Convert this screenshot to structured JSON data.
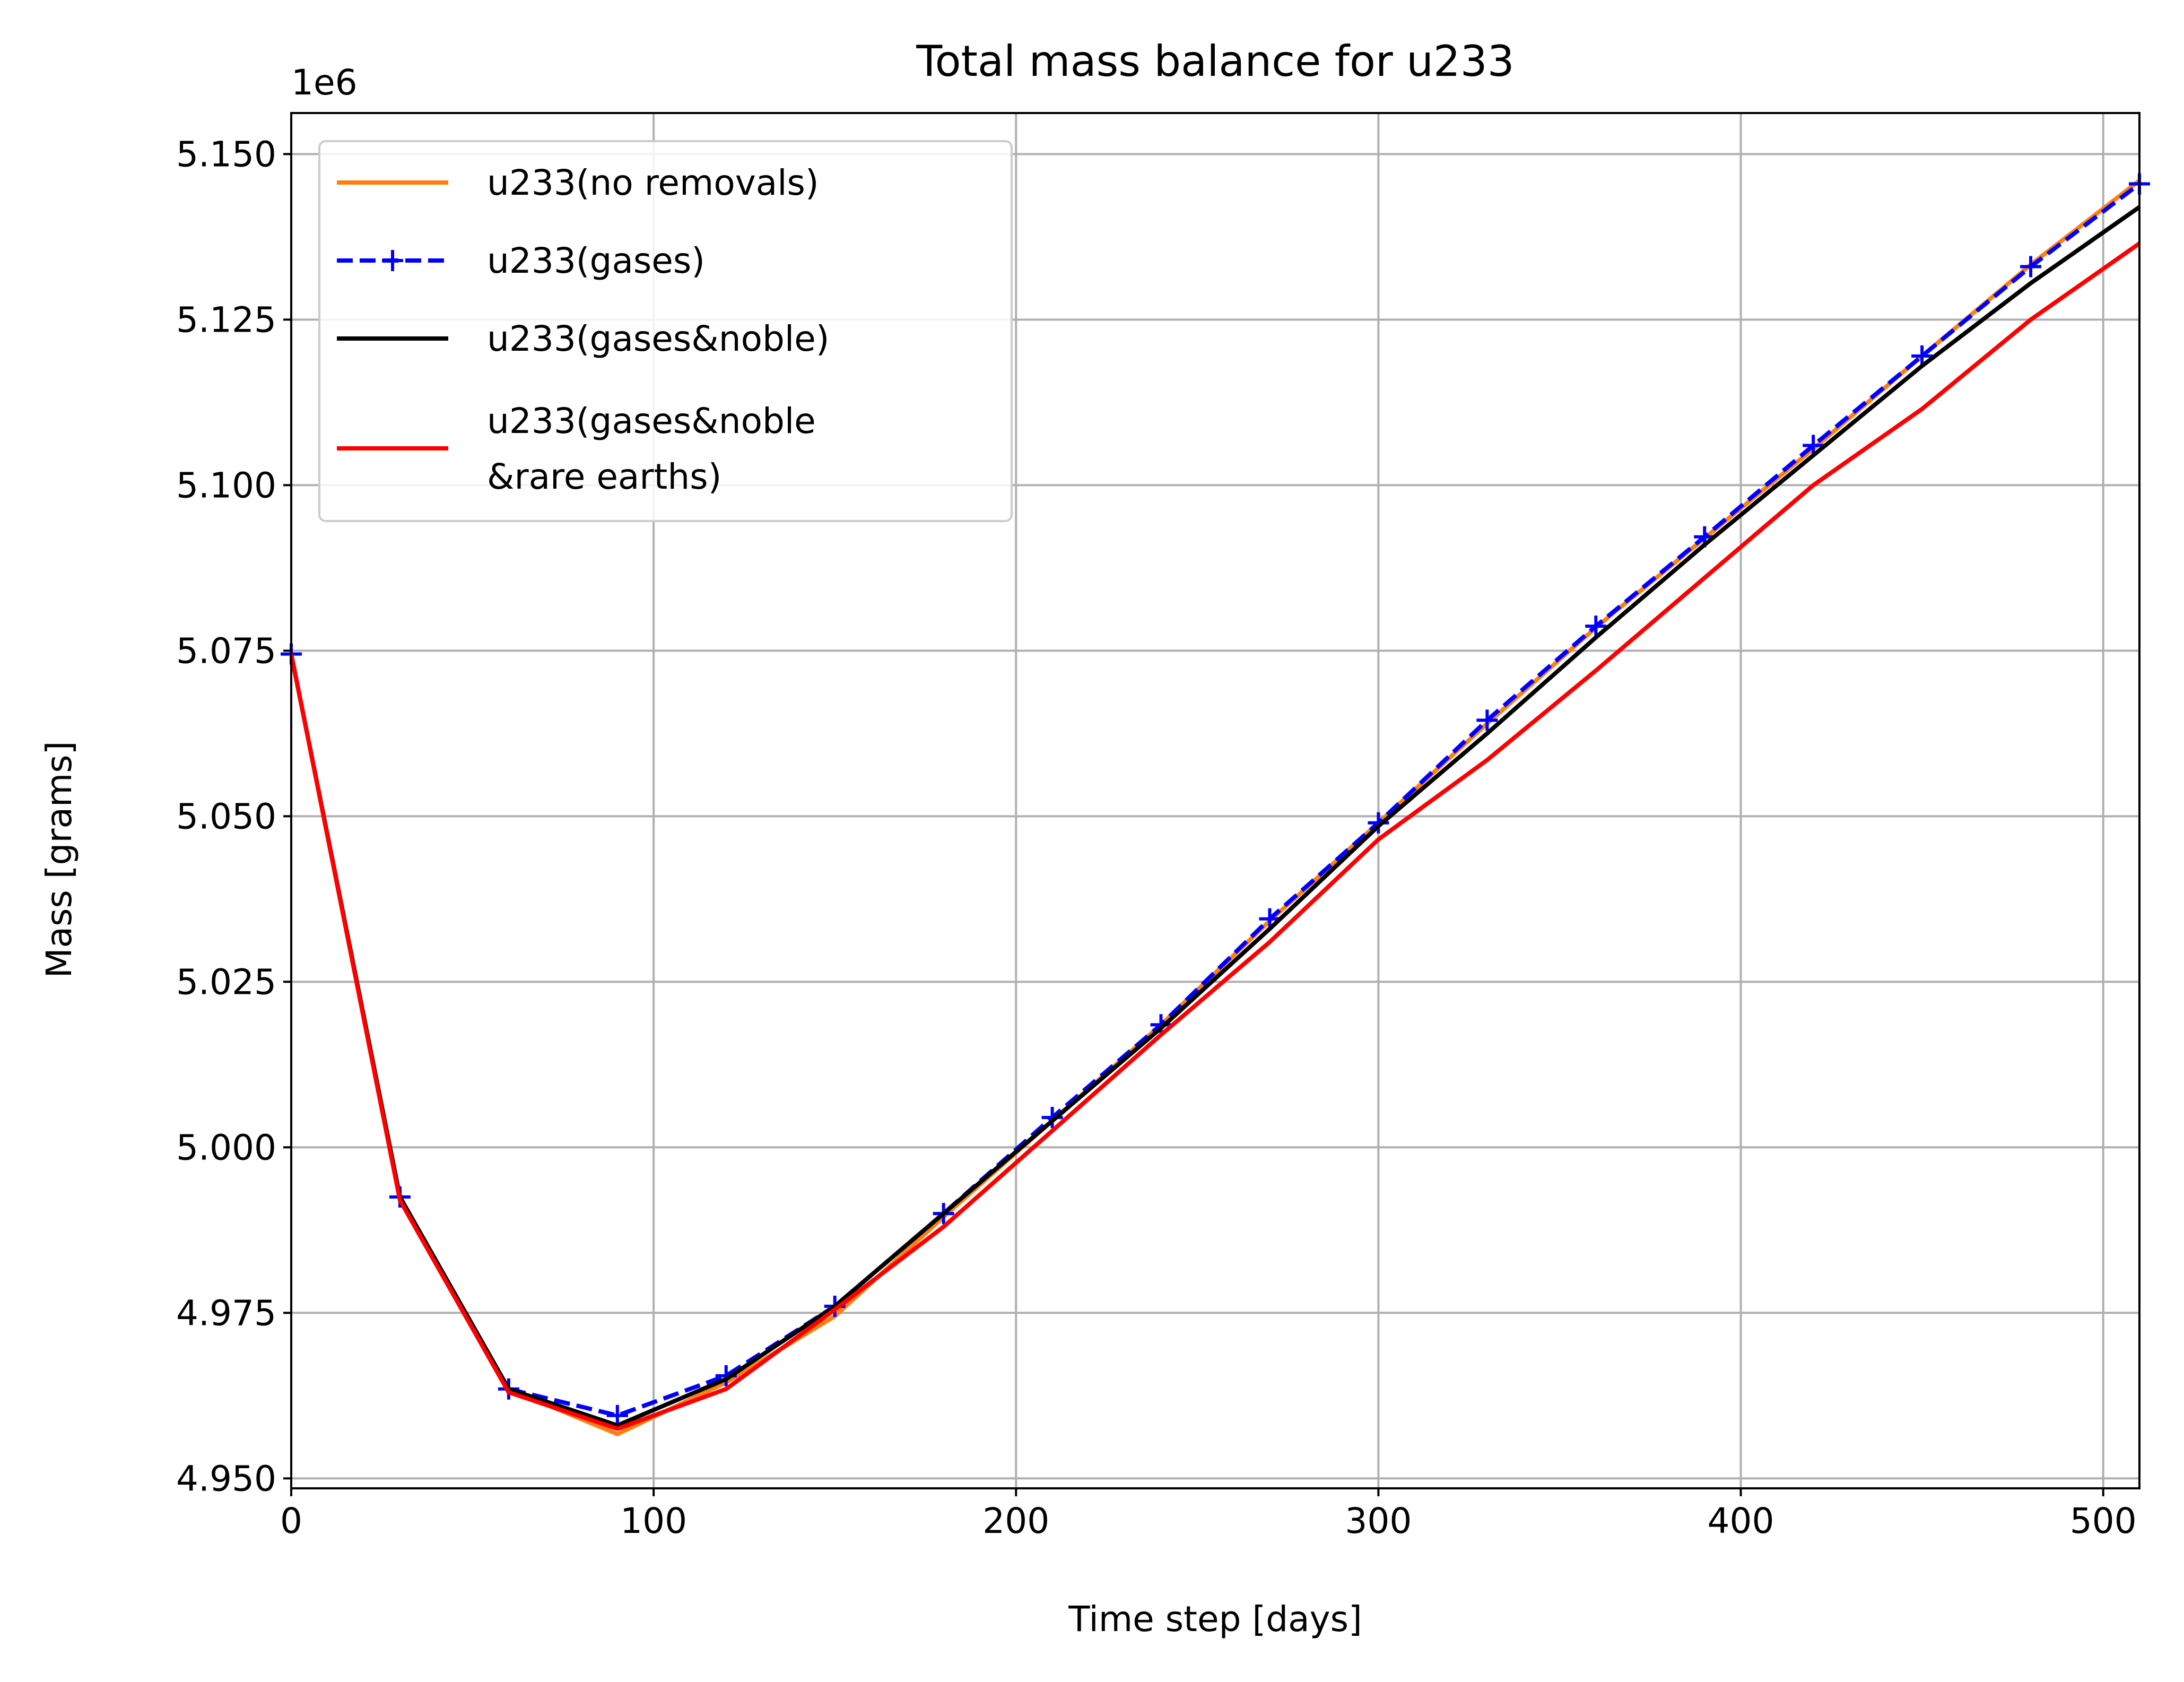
{
  "chart_data": {
    "type": "line",
    "title": "Total mass balance for u233",
    "xlabel": "Time step [days]",
    "ylabel": "Mass [grams]",
    "y_offset_label": "1e6",
    "xlim": [
      0,
      510
    ],
    "ylim": [
      4.9485,
      5.1562
    ],
    "x_ticks": [
      0,
      100,
      200,
      300,
      400,
      500
    ],
    "x_tick_labels": [
      "0",
      "100",
      "200",
      "300",
      "400",
      "500"
    ],
    "y_ticks": [
      4.95,
      4.975,
      5.0,
      5.025,
      5.05,
      5.075,
      5.1,
      5.125,
      5.15
    ],
    "y_tick_labels": [
      "4.950",
      "4.975",
      "5.000",
      "5.025",
      "5.050",
      "5.075",
      "5.100",
      "5.125",
      "5.150"
    ],
    "grid": true,
    "legend_position": "upper-left",
    "x": [
      0,
      30,
      60,
      90,
      120,
      150,
      180,
      210,
      240,
      270,
      300,
      330,
      360,
      390,
      420,
      450,
      480,
      510
    ],
    "series": [
      {
        "name": "u233(no removals)",
        "color": "#ff7f0e",
        "dash": "solid",
        "marker": "none",
        "values": [
          5.0745,
          4.9925,
          4.9635,
          4.9567,
          4.9645,
          4.9745,
          4.9895,
          5.004,
          5.0185,
          5.0342,
          5.049,
          5.064,
          5.0785,
          5.092,
          5.1055,
          5.1195,
          5.1333,
          5.146
        ]
      },
      {
        "name": "u233(gases)",
        "color": "#0000ff",
        "dash": "dashed",
        "marker": "plus",
        "values": [
          5.0745,
          4.9925,
          4.9635,
          4.9595,
          4.9655,
          4.976,
          4.99,
          5.0045,
          5.0185,
          5.0345,
          5.049,
          5.0645,
          5.0787,
          5.0922,
          5.106,
          5.1195,
          5.133,
          5.1455
        ]
      },
      {
        "name": "u233(gases&noble)",
        "color": "#000000",
        "dash": "solid",
        "marker": "none",
        "values": [
          5.0745,
          4.9925,
          4.9635,
          4.958,
          4.965,
          4.976,
          4.99,
          5.004,
          5.018,
          5.033,
          5.0485,
          5.0625,
          5.077,
          5.091,
          5.1045,
          5.118,
          5.1305,
          5.142
        ]
      },
      {
        "name": "u233(gases&noble\n&rare earths)",
        "color": "#ff0000",
        "dash": "solid",
        "marker": "none",
        "values": [
          5.0745,
          4.992,
          4.963,
          4.9575,
          4.9635,
          4.9755,
          4.988,
          5.0025,
          5.017,
          5.031,
          5.0465,
          5.0585,
          5.072,
          5.086,
          5.1,
          5.1115,
          5.125,
          5.1365
        ]
      }
    ]
  }
}
